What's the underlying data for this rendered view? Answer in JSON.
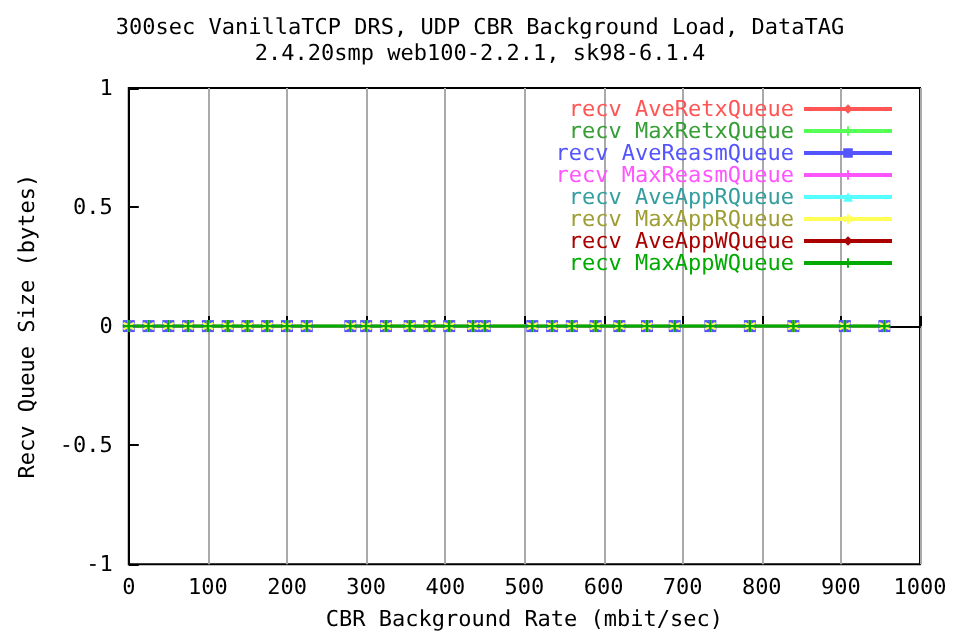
{
  "chart_data": {
    "type": "line",
    "title": "300sec VanillaTCP DRS, UDP CBR Background Load, DataTAG\n2.4.20smp web100-2.2.1, sk98-6.1.4",
    "xlabel": "CBR Background Rate (mbit/sec)",
    "ylabel": "Recv Queue Size (bytes)",
    "x": [
      0,
      25,
      50,
      75,
      100,
      125,
      150,
      175,
      200,
      225,
      280,
      300,
      325,
      355,
      380,
      405,
      435,
      450,
      510,
      535,
      560,
      590,
      620,
      655,
      690,
      735,
      785,
      840,
      905,
      955
    ],
    "series": [
      {
        "name": "recv AveRetxQueue",
        "color": "#ff5555",
        "marker": "diamond",
        "values": [
          null,
          null,
          null,
          null,
          null,
          null,
          null,
          null,
          null,
          null,
          null,
          null,
          null,
          null,
          null,
          null,
          null,
          null,
          null,
          null,
          null,
          null,
          null,
          null,
          null,
          null,
          null,
          null,
          null,
          null
        ]
      },
      {
        "name": "recv MaxRetxQueue",
        "color": "#55ff55",
        "marker": "cross",
        "values": [
          null,
          null,
          null,
          null,
          null,
          null,
          null,
          null,
          null,
          null,
          null,
          null,
          null,
          null,
          null,
          null,
          null,
          null,
          null,
          null,
          null,
          null,
          null,
          null,
          null,
          null,
          null,
          null,
          null,
          null
        ]
      },
      {
        "name": "recv AveReasmQueue",
        "color": "#5555ff",
        "marker": "square",
        "values": [
          0,
          0,
          0,
          0,
          0,
          0,
          0,
          0,
          0,
          0,
          0,
          0,
          0,
          0,
          0,
          0,
          0,
          0,
          0,
          0,
          0,
          0,
          0,
          0,
          0,
          0,
          0,
          0,
          0,
          0
        ]
      },
      {
        "name": "recv MaxReasmQueue",
        "color": "#ff55ff",
        "marker": "cross",
        "values": [
          null,
          null,
          null,
          null,
          null,
          null,
          null,
          null,
          null,
          null,
          null,
          null,
          null,
          null,
          null,
          null,
          null,
          null,
          null,
          null,
          null,
          null,
          null,
          null,
          null,
          null,
          null,
          null,
          null,
          null
        ]
      },
      {
        "name": "recv AveAppRQueue",
        "color": "#55ffff",
        "marker": "triangle",
        "values": [
          null,
          null,
          null,
          null,
          null,
          null,
          null,
          null,
          null,
          null,
          null,
          null,
          null,
          null,
          null,
          null,
          null,
          null,
          null,
          null,
          null,
          null,
          null,
          null,
          null,
          null,
          null,
          null,
          null,
          null
        ]
      },
      {
        "name": "recv MaxAppRQueue",
        "color": "#ffff55",
        "marker": "star",
        "values": [
          0,
          0,
          0,
          0,
          0,
          0,
          0,
          0,
          0,
          0,
          0,
          0,
          0,
          0,
          0,
          0,
          0,
          0,
          0,
          0,
          0,
          0,
          0,
          0,
          0,
          0,
          0,
          0,
          0,
          0
        ]
      },
      {
        "name": "recv AveAppWQueue",
        "color": "#aa0000",
        "marker": "diamond",
        "values": [
          null,
          null,
          null,
          null,
          null,
          null,
          null,
          null,
          null,
          null,
          null,
          null,
          null,
          null,
          null,
          null,
          null,
          null,
          null,
          null,
          null,
          null,
          null,
          null,
          null,
          null,
          null,
          null,
          null,
          null
        ]
      },
      {
        "name": "recv MaxAppWQueue",
        "color": "#00aa00",
        "marker": "cross",
        "values": [
          0,
          0,
          0,
          0,
          0,
          0,
          0,
          0,
          0,
          0,
          0,
          0,
          0,
          0,
          0,
          0,
          0,
          0,
          0,
          0,
          0,
          0,
          0,
          0,
          0,
          0,
          0,
          0,
          0,
          0
        ]
      }
    ],
    "xlim": [
      0,
      1000
    ],
    "xticks": [
      0,
      100,
      200,
      300,
      400,
      500,
      600,
      700,
      800,
      900,
      1000
    ],
    "ylim": [
      -1,
      1
    ],
    "yticks": [
      -1,
      -0.5,
      0,
      0.5,
      1
    ],
    "grid": "x",
    "legend": "top right"
  }
}
